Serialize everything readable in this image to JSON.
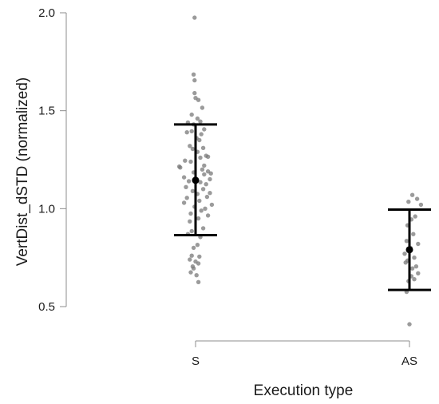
{
  "chart_data": {
    "type": "scatter",
    "title": "",
    "xlabel": "Execution type",
    "ylabel": "VertDist_dSTD (normalized)",
    "categories": [
      "S",
      "AS"
    ],
    "ylim": [
      0.4,
      2.05
    ],
    "yticks": [
      0.5,
      1.0,
      1.5,
      2.0
    ],
    "ytick_labels": [
      "0.5",
      "1.0",
      "1.5",
      "2.0"
    ],
    "grid": false,
    "legend": "none",
    "colors": {
      "points": "#7a7a7a",
      "summary": "#000000",
      "axis": "#8c8c8c"
    },
    "series": [
      {
        "category": "S",
        "mean": 1.145,
        "lower": 0.865,
        "upper": 1.43,
        "points": [
          {
            "j": -0.01,
            "y": 1.975
          },
          {
            "j": -0.02,
            "y": 1.685
          },
          {
            "j": -0.01,
            "y": 1.655
          },
          {
            "j": -0.01,
            "y": 1.59
          },
          {
            "j": 0.0,
            "y": 1.565
          },
          {
            "j": 0.03,
            "y": 1.555
          },
          {
            "j": 0.07,
            "y": 1.515
          },
          {
            "j": -0.04,
            "y": 1.48
          },
          {
            "j": 0.02,
            "y": 1.46
          },
          {
            "j": 0.05,
            "y": 1.445
          },
          {
            "j": -0.08,
            "y": 1.44
          },
          {
            "j": -0.02,
            "y": 1.43
          },
          {
            "j": 0.09,
            "y": 1.405
          },
          {
            "j": -0.04,
            "y": 1.395
          },
          {
            "j": -0.09,
            "y": 1.39
          },
          {
            "j": 0.06,
            "y": 1.38
          },
          {
            "j": 0.01,
            "y": 1.36
          },
          {
            "j": 0.04,
            "y": 1.35
          },
          {
            "j": -0.06,
            "y": 1.32
          },
          {
            "j": 0.08,
            "y": 1.31
          },
          {
            "j": -0.03,
            "y": 1.305
          },
          {
            "j": 0.02,
            "y": 1.29
          },
          {
            "j": 0.11,
            "y": 1.27
          },
          {
            "j": 0.13,
            "y": 1.265
          },
          {
            "j": 0.05,
            "y": 1.26
          },
          {
            "j": -0.11,
            "y": 1.245
          },
          {
            "j": -0.05,
            "y": 1.24
          },
          {
            "j": 0.09,
            "y": 1.22
          },
          {
            "j": -0.17,
            "y": 1.215
          },
          {
            "j": -0.16,
            "y": 1.21
          },
          {
            "j": 0.07,
            "y": 1.2
          },
          {
            "j": 0.13,
            "y": 1.19
          },
          {
            "j": -0.02,
            "y": 1.185
          },
          {
            "j": 0.16,
            "y": 1.18
          },
          {
            "j": 0.09,
            "y": 1.175
          },
          {
            "j": -0.12,
            "y": 1.16
          },
          {
            "j": 0.15,
            "y": 1.15
          },
          {
            "j": -0.07,
            "y": 1.14
          },
          {
            "j": 0.05,
            "y": 1.135
          },
          {
            "j": 0.11,
            "y": 1.125
          },
          {
            "j": -0.1,
            "y": 1.11
          },
          {
            "j": 0.08,
            "y": 1.1
          },
          {
            "j": -0.03,
            "y": 1.09
          },
          {
            "j": 0.15,
            "y": 1.08
          },
          {
            "j": 0.02,
            "y": 1.075
          },
          {
            "j": 0.12,
            "y": 1.06
          },
          {
            "j": -0.09,
            "y": 1.055
          },
          {
            "j": 0.04,
            "y": 1.04
          },
          {
            "j": -0.12,
            "y": 1.03
          },
          {
            "j": 0.17,
            "y": 1.02
          },
          {
            "j": -0.01,
            "y": 1.01
          },
          {
            "j": 0.1,
            "y": 1.0
          },
          {
            "j": 0.06,
            "y": 0.99
          },
          {
            "j": -0.05,
            "y": 0.975
          },
          {
            "j": 0.13,
            "y": 0.965
          },
          {
            "j": 0.03,
            "y": 0.95
          },
          {
            "j": -0.06,
            "y": 0.935
          },
          {
            "j": 0.08,
            "y": 0.9
          },
          {
            "j": -0.04,
            "y": 0.885
          },
          {
            "j": -0.08,
            "y": 0.87
          },
          {
            "j": 0.05,
            "y": 0.855
          },
          {
            "j": 0.02,
            "y": 0.815
          },
          {
            "j": -0.02,
            "y": 0.8
          },
          {
            "j": -0.04,
            "y": 0.76
          },
          {
            "j": 0.04,
            "y": 0.755
          },
          {
            "j": -0.06,
            "y": 0.74
          },
          {
            "j": 0.0,
            "y": 0.73
          },
          {
            "j": 0.03,
            "y": 0.72
          },
          {
            "j": -0.03,
            "y": 0.705
          },
          {
            "j": -0.02,
            "y": 0.695
          },
          {
            "j": -0.05,
            "y": 0.675
          },
          {
            "j": 0.01,
            "y": 0.66
          },
          {
            "j": 0.03,
            "y": 0.625
          }
        ]
      },
      {
        "category": "AS",
        "mean": 0.79,
        "lower": 0.585,
        "upper": 0.995,
        "points": [
          {
            "j": 0.03,
            "y": 1.07
          },
          {
            "j": 0.08,
            "y": 1.05
          },
          {
            "j": -0.01,
            "y": 1.035
          },
          {
            "j": 0.12,
            "y": 1.02
          },
          {
            "j": 0.06,
            "y": 0.96
          },
          {
            "j": 0.02,
            "y": 0.945
          },
          {
            "j": -0.02,
            "y": 0.915
          },
          {
            "j": 0.04,
            "y": 0.87
          },
          {
            "j": -0.03,
            "y": 0.835
          },
          {
            "j": 0.09,
            "y": 0.82
          },
          {
            "j": 0.01,
            "y": 0.8
          },
          {
            "j": -0.05,
            "y": 0.77
          },
          {
            "j": 0.05,
            "y": 0.75
          },
          {
            "j": -0.02,
            "y": 0.735
          },
          {
            "j": -0.04,
            "y": 0.725
          },
          {
            "j": 0.07,
            "y": 0.705
          },
          {
            "j": 0.03,
            "y": 0.695
          },
          {
            "j": 0.09,
            "y": 0.67
          },
          {
            "j": 0.02,
            "y": 0.655
          },
          {
            "j": 0.05,
            "y": 0.64
          },
          {
            "j": -0.01,
            "y": 0.63
          },
          {
            "j": -0.03,
            "y": 0.575
          },
          {
            "j": 0.0,
            "y": 0.41
          }
        ]
      }
    ]
  }
}
